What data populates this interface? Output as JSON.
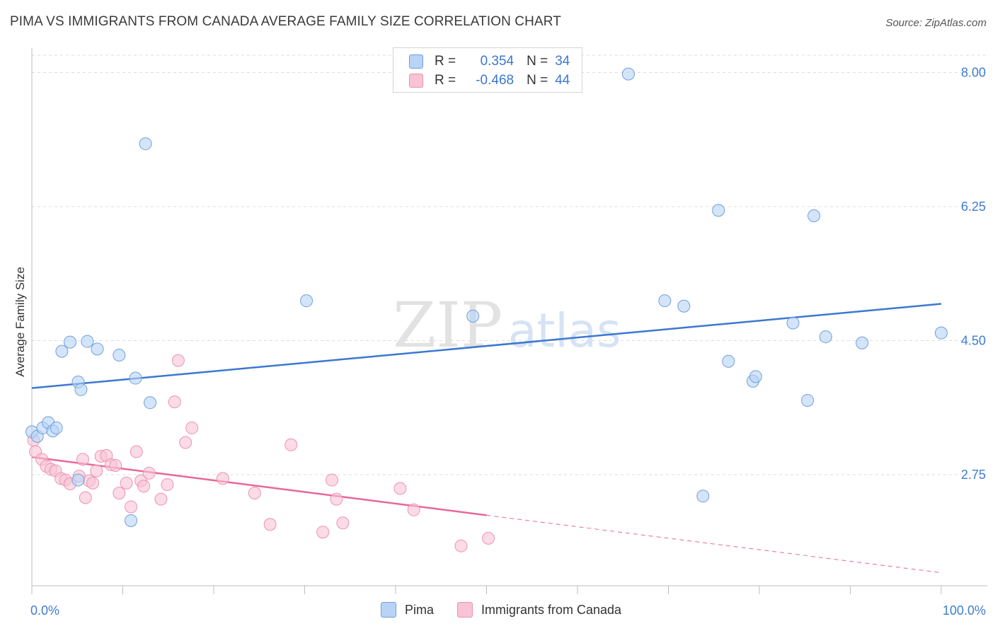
{
  "title": "PIMA VS IMMIGRANTS FROM CANADA AVERAGE FAMILY SIZE CORRELATION CHART",
  "source": "Source: ZipAtlas.com",
  "watermark": {
    "zip": "ZIP",
    "atlas": "atlas"
  },
  "colors": {
    "pima_fill": "#b8d3f5",
    "pima_stroke": "#6f9fdc",
    "pima_line": "#3c78d0",
    "canada_fill": "#f8c3d4",
    "canada_stroke": "#ec93b2",
    "canada_line": "#e8679a",
    "grid": "#dcdcdc",
    "tick_text": "#3f7dd0"
  },
  "legend": {
    "pima": {
      "r_label": "R =",
      "r_value": "0.354",
      "n_label": "N =",
      "n_value": "34"
    },
    "canada": {
      "r_label": "R =",
      "r_value": "-0.468",
      "n_label": "N =",
      "n_value": "44"
    }
  },
  "chart_data": {
    "type": "scatter",
    "title": "PIMA VS IMMIGRANTS FROM CANADA AVERAGE FAMILY SIZE CORRELATION CHART",
    "xlabel": "",
    "ylabel": "Average Family Size",
    "xlim": [
      0,
      100
    ],
    "ylim": [
      1.3,
      8.3
    ],
    "x_tick_labels": [
      "0.0%",
      "100.0%"
    ],
    "y_ticks": [
      2.75,
      4.5,
      6.25,
      8.0
    ],
    "y_tick_labels": [
      "2.75",
      "4.50",
      "6.25",
      "8.00"
    ],
    "series": [
      {
        "name": "Pima",
        "points": [
          [
            0.0,
            3.31
          ],
          [
            0.6,
            3.25
          ],
          [
            1.2,
            3.36
          ],
          [
            1.8,
            3.43
          ],
          [
            2.3,
            3.32
          ],
          [
            2.7,
            3.36
          ],
          [
            3.3,
            4.36
          ],
          [
            4.2,
            4.48
          ],
          [
            5.1,
            2.68
          ],
          [
            5.1,
            3.96
          ],
          [
            5.4,
            3.86
          ],
          [
            6.1,
            4.49
          ],
          [
            7.2,
            4.39
          ],
          [
            9.6,
            4.31
          ],
          [
            10.9,
            2.15
          ],
          [
            11.4,
            4.01
          ],
          [
            12.5,
            7.07
          ],
          [
            13.0,
            3.69
          ],
          [
            30.2,
            5.02
          ],
          [
            48.5,
            4.82
          ],
          [
            65.6,
            7.98
          ],
          [
            69.6,
            5.02
          ],
          [
            71.7,
            4.95
          ],
          [
            73.8,
            2.47
          ],
          [
            75.5,
            6.2
          ],
          [
            76.6,
            4.23
          ],
          [
            79.3,
            3.97
          ],
          [
            79.6,
            4.03
          ],
          [
            83.7,
            4.73
          ],
          [
            85.3,
            3.72
          ],
          [
            86.0,
            6.13
          ],
          [
            87.3,
            4.55
          ],
          [
            91.3,
            4.47
          ],
          [
            100.0,
            4.6
          ]
        ]
      },
      {
        "name": "Immigrants from Canada",
        "points": [
          [
            0.2,
            3.2
          ],
          [
            0.4,
            3.05
          ],
          [
            1.1,
            2.95
          ],
          [
            1.6,
            2.86
          ],
          [
            2.1,
            2.82
          ],
          [
            2.6,
            2.8
          ],
          [
            3.2,
            2.7
          ],
          [
            3.7,
            2.68
          ],
          [
            4.2,
            2.63
          ],
          [
            5.2,
            2.73
          ],
          [
            5.6,
            2.95
          ],
          [
            5.9,
            2.45
          ],
          [
            6.3,
            2.67
          ],
          [
            6.7,
            2.64
          ],
          [
            7.1,
            2.8
          ],
          [
            7.6,
            2.99
          ],
          [
            8.2,
            3.0
          ],
          [
            8.7,
            2.88
          ],
          [
            9.2,
            2.87
          ],
          [
            9.6,
            2.51
          ],
          [
            10.4,
            2.64
          ],
          [
            10.9,
            2.33
          ],
          [
            11.5,
            3.05
          ],
          [
            12.0,
            2.67
          ],
          [
            12.3,
            2.6
          ],
          [
            12.9,
            2.77
          ],
          [
            14.2,
            2.43
          ],
          [
            14.9,
            2.62
          ],
          [
            16.1,
            4.24
          ],
          [
            15.7,
            3.7
          ],
          [
            16.9,
            3.17
          ],
          [
            17.6,
            3.36
          ],
          [
            21.0,
            2.7
          ],
          [
            24.5,
            2.51
          ],
          [
            26.2,
            2.1
          ],
          [
            28.5,
            3.14
          ],
          [
            32.0,
            2.0
          ],
          [
            33.0,
            2.68
          ],
          [
            33.5,
            2.43
          ],
          [
            34.2,
            2.12
          ],
          [
            40.5,
            2.57
          ],
          [
            42.0,
            2.29
          ],
          [
            47.2,
            1.82
          ],
          [
            50.2,
            1.92
          ]
        ]
      }
    ],
    "trendlines": [
      {
        "series": "Pima",
        "x": [
          0,
          100
        ],
        "y": [
          3.88,
          4.98
        ],
        "style": "solid"
      },
      {
        "series": "Immigrants from Canada",
        "x": [
          0,
          50
        ],
        "y": [
          2.98,
          2.22
        ],
        "style": "solid"
      },
      {
        "series": "Immigrants from Canada",
        "x": [
          50,
          100
        ],
        "y": [
          2.22,
          1.47
        ],
        "style": "dashed"
      }
    ]
  }
}
